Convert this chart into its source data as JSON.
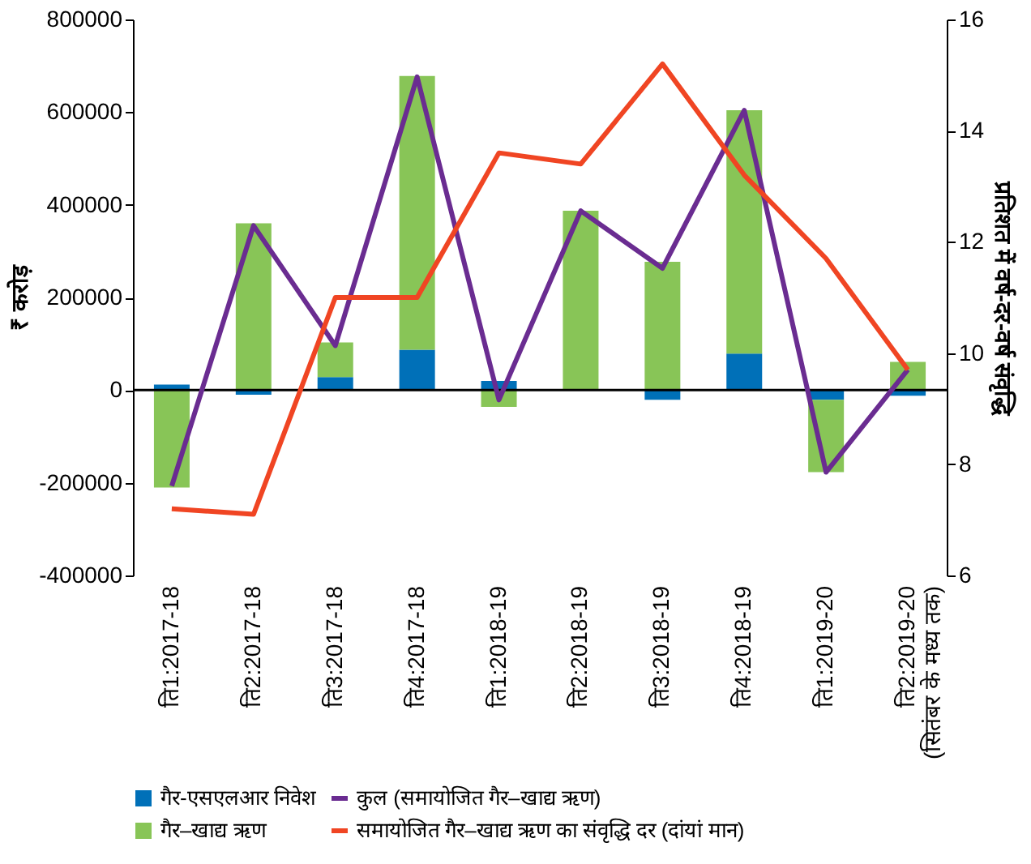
{
  "chart_data": {
    "type": "bar",
    "stacked": true,
    "categories": [
      "ति1:2017-18",
      "ति2:2017-18",
      "ति3:2017-18",
      "ति4:2017-18",
      "ति1:2018-19",
      "ति2:2018-19",
      "ति3:2018-19",
      "ति4:2018-19",
      "ति1:2019-20",
      "ति2:2019-20\n(सितंबर के मध्य तक)"
    ],
    "ylabel": "₹ करोड़",
    "y2label": "प्रतिशत में वर्ष-दर-वर्ष संवृद्धि",
    "ylim": [
      -400000,
      800000
    ],
    "yticks": [
      -400000,
      -200000,
      0,
      200000,
      400000,
      600000,
      800000
    ],
    "y2lim": [
      6,
      16
    ],
    "y2ticks": [
      6,
      8,
      10,
      12,
      14,
      16
    ],
    "series": [
      {
        "name": "गैर-एसएलआर निवेश",
        "type": "bar",
        "color": "#0070b8",
        "values": [
          12000,
          -10000,
          28000,
          87000,
          20000,
          null,
          -21000,
          79000,
          -21000,
          -12000
        ]
      },
      {
        "name": "गैर–खाद्य ऋण",
        "type": "bar",
        "color": "#88c557",
        "values": [
          -210000,
          360000,
          75000,
          591000,
          -36000,
          387000,
          277000,
          525000,
          -156000,
          61000
        ]
      },
      {
        "name": "कुल (समायोजित गैर–खाद्य ऋण)",
        "type": "line",
        "color": "#6a2c91",
        "values": [
          -207000,
          355000,
          96000,
          676000,
          -21000,
          387000,
          263000,
          604000,
          -177000,
          44000
        ]
      },
      {
        "name": "समायोजित गैर–खाद्य ऋण का संवृद्धि दर (दांयां मान)",
        "type": "line",
        "axis": "y2",
        "color": "#f04523",
        "values": [
          7.2,
          7.1,
          11.0,
          11.0,
          13.6,
          13.4,
          15.2,
          13.2,
          11.7,
          9.7
        ]
      }
    ],
    "ref_lines": [
      {
        "axis": "y",
        "value": 0
      }
    ],
    "grid": false,
    "legend": "bottom"
  }
}
